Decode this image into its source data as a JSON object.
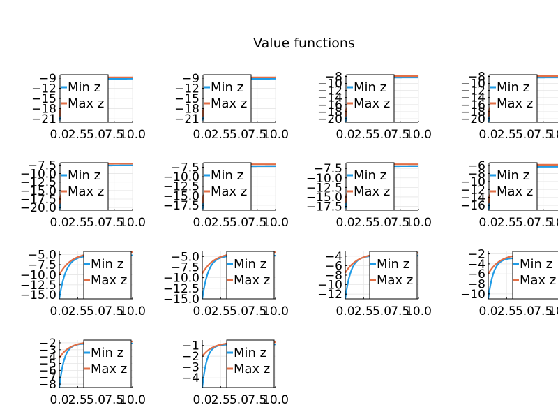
{
  "chart_data": {
    "type": "line",
    "title": "Value functions",
    "xlim": [
      0,
      10
    ],
    "xticks": [
      "0.0",
      "2.5",
      "5.0",
      "7.5",
      "10.0"
    ],
    "legend": "inside each panel",
    "grid": true,
    "series_colors": {
      "Min z": "#1f9be6",
      "Max z": "#e26f46"
    },
    "panels": [
      {
        "yticks": [
          "-9",
          "-12",
          "-15",
          "-18",
          "-21"
        ],
        "yrange": [
          -22,
          -8
        ],
        "legend_pos": "top-left",
        "series": [
          {
            "name": "Min z",
            "start": -21.5,
            "end": -9.2,
            "k": 0.9
          },
          {
            "name": "Max z",
            "start": -20.5,
            "end": -8.8,
            "k": 1.2
          }
        ]
      },
      {
        "yticks": [
          "-9",
          "-12",
          "-15",
          "-18",
          "-21"
        ],
        "yrange": [
          -22,
          -8
        ],
        "legend_pos": "top-left",
        "series": [
          {
            "name": "Min z",
            "start": -21.5,
            "end": -9.2,
            "k": 0.9
          },
          {
            "name": "Max z",
            "start": -20.5,
            "end": -8.8,
            "k": 1.2
          }
        ]
      },
      {
        "yticks": [
          "-8",
          "-10",
          "-12",
          "-14",
          "-16",
          "-18",
          "-20"
        ],
        "yrange": [
          -21,
          -7.5
        ],
        "legend_pos": "top-left",
        "series": [
          {
            "name": "Min z",
            "start": -20.8,
            "end": -8.3,
            "k": 0.9
          },
          {
            "name": "Max z",
            "start": -19.5,
            "end": -7.9,
            "k": 1.2
          }
        ]
      },
      {
        "yticks": [
          "-8",
          "-10",
          "-12",
          "-14",
          "-16",
          "-18",
          "-20"
        ],
        "yrange": [
          -21,
          -7.5
        ],
        "legend_pos": "top-left",
        "series": [
          {
            "name": "Min z",
            "start": -20.8,
            "end": -8.3,
            "k": 0.9
          },
          {
            "name": "Max z",
            "start": -19.5,
            "end": -7.9,
            "k": 1.2
          }
        ]
      },
      {
        "yticks": [
          "-7.5",
          "-10.0",
          "-12.5",
          "-15.0",
          "-17.5",
          "-20.0"
        ],
        "yrange": [
          -20.8,
          -6.8
        ],
        "legend_pos": "top-left",
        "series": [
          {
            "name": "Min z",
            "start": -20.5,
            "end": -7.6,
            "k": 0.9
          },
          {
            "name": "Max z",
            "start": -19.0,
            "end": -7.1,
            "k": 1.2
          }
        ]
      },
      {
        "yticks": [
          "-7.5",
          "-10.0",
          "-12.5",
          "-15.0",
          "-17.5"
        ],
        "yrange": [
          -18.8,
          -6.3
        ],
        "legend_pos": "top-left",
        "series": [
          {
            "name": "Min z",
            "start": -18.5,
            "end": -7.2,
            "k": 0.9
          },
          {
            "name": "Max z",
            "start": -17.0,
            "end": -6.7,
            "k": 1.2
          }
        ]
      },
      {
        "yticks": [
          "-7.5",
          "-10.0",
          "-12.5",
          "-15.0",
          "-17.5"
        ],
        "yrange": [
          -18.5,
          -6.0
        ],
        "legend_pos": "top-left",
        "series": [
          {
            "name": "Min z",
            "start": -18.0,
            "end": -6.9,
            "k": 0.9
          },
          {
            "name": "Max z",
            "start": -16.5,
            "end": -6.4,
            "k": 1.2
          }
        ]
      },
      {
        "yticks": [
          "-6",
          "-8",
          "-10",
          "-12",
          "-14",
          "-16"
        ],
        "yrange": [
          -17.2,
          -5.3
        ],
        "legend_pos": "top-left",
        "series": [
          {
            "name": "Min z",
            "start": -17.0,
            "end": -6.3,
            "k": 0.9
          },
          {
            "name": "Max z",
            "start": -15.5,
            "end": -5.8,
            "k": 1.2
          }
        ]
      },
      {
        "yticks": [
          "-5.0",
          "-7.5",
          "-10.0",
          "-12.5",
          "-15.0"
        ],
        "yrange": [
          -16.0,
          -4.2
        ],
        "legend_pos": "bottom-right",
        "series": [
          {
            "name": "Min z",
            "start": -16.0,
            "end": -5.2,
            "k": 1.1
          },
          {
            "name": "Max z",
            "start": -10.0,
            "end": -4.4,
            "k": 0.6
          }
        ]
      },
      {
        "yticks": [
          "-5.0",
          "-7.5",
          "-10.0",
          "-12.5",
          "-15.0"
        ],
        "yrange": [
          -15.0,
          -3.8
        ],
        "legend_pos": "bottom-right",
        "series": [
          {
            "name": "Min z",
            "start": -15.0,
            "end": -4.8,
            "k": 1.2
          },
          {
            "name": "Max z",
            "start": -9.0,
            "end": -4.0,
            "k": 0.6
          }
        ]
      },
      {
        "yticks": [
          "-4",
          "-6",
          "-8",
          "-10",
          "-12"
        ],
        "yrange": [
          -13.0,
          -3.0
        ],
        "legend_pos": "bottom-right",
        "series": [
          {
            "name": "Min z",
            "start": -13.0,
            "end": -3.9,
            "k": 1.3
          },
          {
            "name": "Max z",
            "start": -7.5,
            "end": -3.3,
            "k": 0.6
          }
        ]
      },
      {
        "yticks": [
          "-2",
          "-4",
          "-6",
          "-8",
          "-10"
        ],
        "yrange": [
          -11.0,
          -1.5
        ],
        "legend_pos": "bottom-right",
        "series": [
          {
            "name": "Min z",
            "start": -11.0,
            "end": -2.8,
            "k": 1.4
          },
          {
            "name": "Max z",
            "start": -6.0,
            "end": -2.0,
            "k": 0.65
          }
        ]
      },
      {
        "yticks": [
          "-2",
          "-3",
          "-4",
          "-5",
          "-6",
          "-7",
          "-8"
        ],
        "yrange": [
          -8.5,
          -1.6
        ],
        "legend_pos": "bottom-right",
        "series": [
          {
            "name": "Min z",
            "start": -8.5,
            "end": -2.1,
            "k": 1.5
          },
          {
            "name": "Max z",
            "start": -4.2,
            "end": -1.8,
            "k": 0.7
          }
        ]
      },
      {
        "yticks": [
          "-1",
          "-2",
          "-3",
          "-4"
        ],
        "yrange": [
          -4.9,
          -0.5
        ],
        "legend_pos": "bottom-right",
        "series": [
          {
            "name": "Min z",
            "start": -4.9,
            "end": -0.9,
            "k": 1.6
          },
          {
            "name": "Max z",
            "start": -2.0,
            "end": -0.7,
            "k": 0.7
          }
        ]
      }
    ]
  }
}
